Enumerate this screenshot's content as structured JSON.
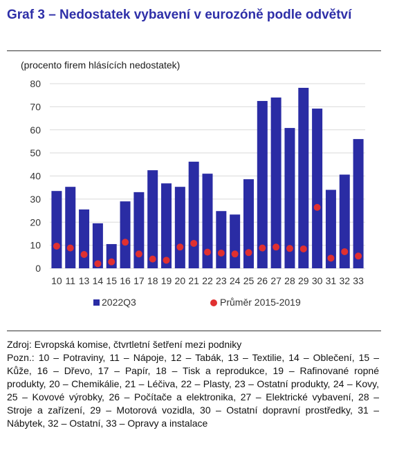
{
  "header": {
    "title": "Graf 3 – Nedostatek vybavení v eurozóně podle odvětví",
    "subtitle": "(procento firem hlásících nedostatek)"
  },
  "chart_data": {
    "type": "bar",
    "categories": [
      "10",
      "11",
      "13",
      "14",
      "15",
      "16",
      "17",
      "18",
      "19",
      "20",
      "21",
      "22",
      "23",
      "24",
      "25",
      "26",
      "27",
      "28",
      "29",
      "30",
      "31",
      "32",
      "33"
    ],
    "series": [
      {
        "name": "2022Q3",
        "kind": "bar",
        "color": "#2a2ca4",
        "values": [
          33.5,
          35.3,
          25.5,
          19.5,
          10.5,
          29,
          33,
          42.5,
          36.8,
          35.3,
          46.2,
          41,
          24.8,
          23.3,
          38.6,
          72.5,
          74,
          60.8,
          78.2,
          69.2,
          34,
          40.6,
          56
        ]
      },
      {
        "name": "Průměr 2015-2019",
        "kind": "point",
        "color": "#e03030",
        "values": [
          9.6,
          8.8,
          6,
          2,
          2.8,
          11.3,
          6.2,
          4,
          3.5,
          9.2,
          10.8,
          7,
          6.6,
          6.2,
          6.8,
          8.8,
          9.2,
          8.6,
          8.4,
          26.4,
          4.4,
          7.2,
          5.3
        ]
      }
    ],
    "ylim": [
      0,
      80
    ],
    "yticks": [
      0,
      10,
      20,
      30,
      40,
      50,
      60,
      70,
      80
    ],
    "grid": true,
    "legend_position": "bottom"
  },
  "notes": {
    "source": "Zdroj: Evropská komise, čtvrtletní šetření mezi podniky",
    "explanation": "Pozn.: 10 – Potraviny, 11 – Nápoje, 12 – Tabák, 13 – Textilie, 14 – Oblečení, 15 – Kůže, 16 – Dřevo, 17 – Papír, 18 – Tisk a reprodukce, 19 – Rafinované ropné produkty, 20 – Chemikálie, 21 – Léčiva, 22 – Plasty, 23 – Ostatní produkty, 24 – Kovy, 25 – Kovové výrobky, 26 – Počítače a elektronika, 27 – Elektrické vybavení, 28 – Stroje a zařízení, 29 – Motorová vozidla, 30 – Ostatní dopravní prostředky, 31 – Nábytek, 32 – Ostatní, 33 – Opravy a instalace"
  }
}
